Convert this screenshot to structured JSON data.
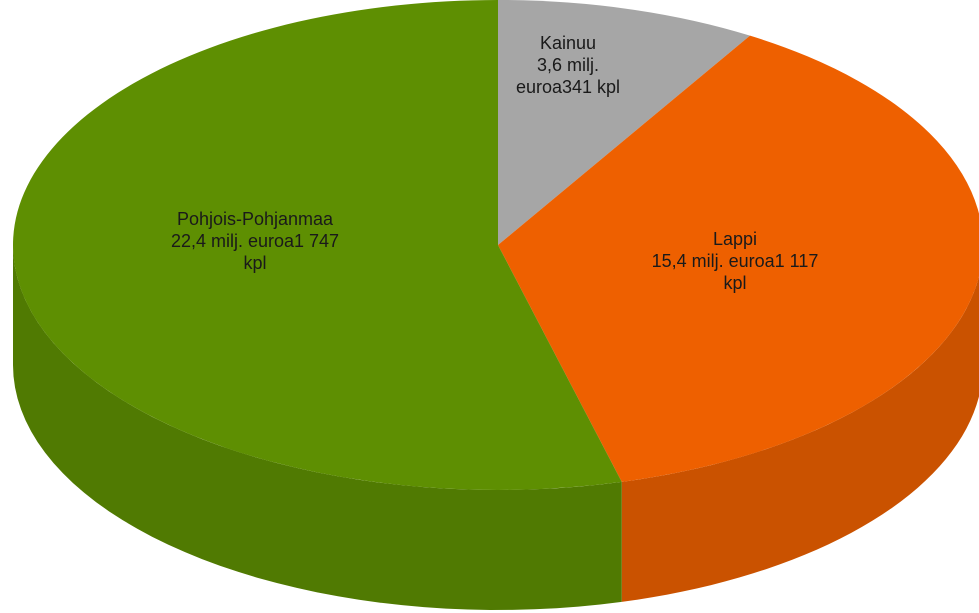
{
  "chart_data": {
    "type": "pie",
    "categories": [
      "Kainuu",
      "Lappi",
      "Pohjois-Pohjanmaa"
    ],
    "values": [
      3.6,
      15.4,
      22.4
    ],
    "value_labels": [
      "3,6 milj. euroa341 kpl",
      "15,4 milj. euroa1 117 kpl",
      "22,4 milj. euroa1 747 kpl"
    ],
    "colors": [
      "#a6a6a6",
      "#ee6000",
      "#5e8f02"
    ]
  }
}
